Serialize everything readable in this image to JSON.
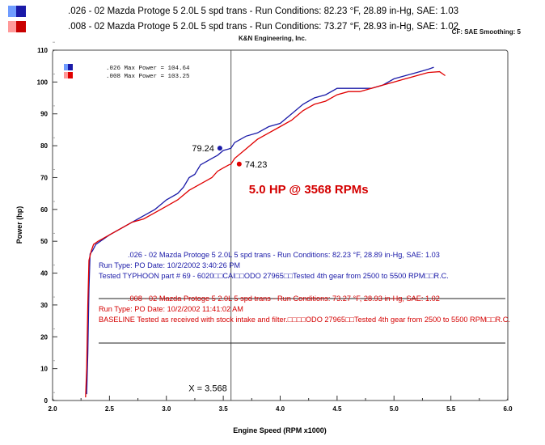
{
  "header": {
    "runs": [
      {
        "swatch": "#1a1aa8",
        "text": ".026 - 02 Mazda Protoge 5 2.0L 5 spd trans  - Run Conditions: 82.23 °F, 28.89 in-Hg, SAE: 1.03"
      },
      {
        "swatch": "#c90000",
        "text": ".008 - 02 Mazda Protoge 5 2.0L 5 spd trans  - Run Conditions: 73.27 °F, 28.93 in-Hg, SAE: 1.02"
      }
    ],
    "company": "K&N Engineering, Inc.",
    "correction_note": "CF: SAE  Smoothing: 5"
  },
  "chart_data": {
    "type": "line",
    "xlabel": "Engine Speed (RPM x1000)",
    "ylabel": "Power (hp)",
    "xlim": [
      2.0,
      6.0
    ],
    "ylim": [
      0,
      110
    ],
    "xticks": [
      "2.0",
      "2.5",
      "3.0",
      "3.5",
      "4.0",
      "4.5",
      "5.0",
      "5.5",
      "6.0"
    ],
    "yticks": [
      "0",
      "10",
      "20",
      "30",
      "40",
      "50",
      "60",
      "70",
      "80",
      "90",
      "100",
      "110"
    ],
    "grid": false,
    "legend_position": "top-left",
    "series": [
      {
        "name": ".026 Max Power = 104.64",
        "color": "#1a1aa8",
        "x": [
          2.3,
          2.31,
          2.32,
          2.33,
          2.35,
          2.38,
          2.42,
          2.5,
          2.6,
          2.7,
          2.8,
          2.9,
          3.0,
          3.1,
          3.15,
          3.2,
          3.25,
          3.3,
          3.35,
          3.4,
          3.45,
          3.5,
          3.55,
          3.568,
          3.6,
          3.7,
          3.8,
          3.9,
          4.0,
          4.1,
          4.2,
          4.3,
          4.4,
          4.5,
          4.6,
          4.7,
          4.8,
          4.9,
          5.0,
          5.1,
          5.2,
          5.3,
          5.35
        ],
        "y": [
          2,
          15,
          35,
          46,
          47,
          49,
          50,
          52,
          54,
          56,
          58,
          60,
          63,
          65,
          67,
          70,
          71,
          74,
          75,
          76,
          77,
          78.5,
          79,
          79.24,
          81,
          83,
          84,
          86,
          87,
          90,
          93,
          95,
          96,
          98,
          98,
          98,
          98,
          99,
          101,
          102,
          103,
          104,
          104.64
        ]
      },
      {
        "name": ".008 Max Power = 103.25",
        "color": "#e00000",
        "x": [
          2.29,
          2.3,
          2.31,
          2.32,
          2.34,
          2.36,
          2.4,
          2.5,
          2.6,
          2.7,
          2.8,
          2.9,
          3.0,
          3.1,
          3.2,
          3.3,
          3.35,
          3.4,
          3.45,
          3.5,
          3.55,
          3.568,
          3.6,
          3.7,
          3.8,
          3.9,
          4.0,
          4.1,
          4.2,
          4.3,
          4.4,
          4.5,
          4.6,
          4.7,
          4.8,
          4.9,
          5.0,
          5.1,
          5.2,
          5.3,
          5.4,
          5.45
        ],
        "y": [
          1,
          10,
          30,
          44,
          47,
          49,
          50,
          52,
          54,
          56,
          57,
          59,
          61,
          63,
          66,
          68,
          69,
          70,
          72,
          73,
          74,
          74.23,
          76,
          79,
          82,
          84,
          86,
          88,
          91,
          93,
          94,
          96,
          97,
          97,
          98,
          99,
          100,
          101,
          102,
          103,
          103.25,
          102
        ]
      }
    ],
    "data_labels": [
      {
        "text": "79.24",
        "x": 3.47,
        "y": 79.24,
        "series": 0
      },
      {
        "text": "74.23",
        "x": 3.64,
        "y": 74.23,
        "series": 1
      }
    ],
    "cursor": {
      "x": 3.568,
      "label": "X = 3.568"
    },
    "annotation": {
      "text": "5.0 HP @ 3568 RPMs",
      "color": "#d40000",
      "x": 4.25,
      "y": 65
    },
    "notes": [
      {
        "color": "#1a1aa8",
        "lines": [
          ".026 - 02 Mazda Protoge 5 2.0L 5 spd trans  - Run Conditions: 82.23 °F, 28.89 in-Hg, SAE: 1.03",
          "Run Type: PO  Date: 10/2/2002 3:40:26 PM",
          "Tested TYPHOON part # 69 - 6020□□CAI□□ODO 27965□□Tested 4th gear from 2500 to 5500 RPM□□R.C."
        ]
      },
      {
        "color": "#d40000",
        "lines": [
          ".008 - 02 Mazda Protoge 5 2.0L 5 spd trans  - Run Conditions: 73.27 °F, 28.93 in-Hg, SAE: 1.02",
          "Run Type: PO  Date: 10/2/2002 11:41:02 AM",
          "BASELINE Tested as received with stock intake and filter.□□□□ODO 27965□□Tested 4th gear from 2500 to 5500 RPM□□R.C."
        ]
      }
    ]
  }
}
